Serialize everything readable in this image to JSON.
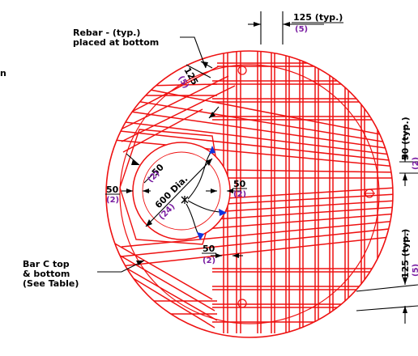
{
  "colors": {
    "rebar": "#ee1111",
    "dimension": "#000000",
    "metric": "#7a1fa2",
    "leader_blue": "#1133dd"
  },
  "labels": {
    "rebar_line1": "Rebar - (typ.)",
    "rebar_line2": "placed at bottom",
    "top_spacing": "125 (typ.)",
    "top_spacing_sub": "(5)",
    "diag_125": "125",
    "diag_125_sub": "(5)",
    "right_50": "50 (typ.)",
    "right_50_sub": "(2)",
    "right_125": "125 (typ.)",
    "right_125_sub": "(5)",
    "hole_50a": "50",
    "hole_50a_sub": "(2)",
    "dia": "600 Dia.",
    "dia_sub": "(24)",
    "left_50": "50",
    "left_50_sub": "(2)",
    "mid_50": "50",
    "mid_50_sub": "(2)",
    "low_50": "50",
    "low_50_sub": "(2)",
    "barc_line1": "Bar C top",
    "barc_line2": "& bottom",
    "barc_line3": "(See Table)",
    "edge_mark": "n"
  }
}
